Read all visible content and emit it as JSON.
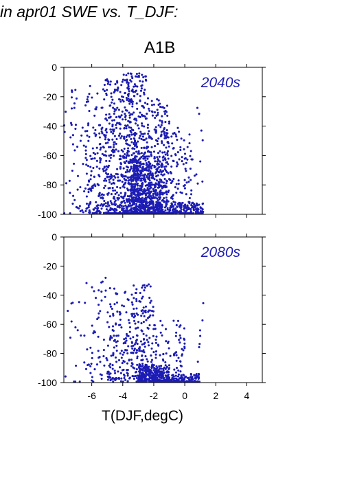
{
  "figure": {
    "title": "in apr01 SWE vs. T_DJF:",
    "scenario": "A1B",
    "xlabel": "T(DJF,degC)"
  },
  "colors": {
    "points": "#1c1cb4",
    "panel_label": "#1c1cb4",
    "axes": "#000000"
  },
  "chart_data": [
    {
      "type": "scatter",
      "panel_label": "2040s",
      "xlim": [
        -7.8,
        5.0
      ],
      "ylim": [
        -100,
        0
      ],
      "yticks": [
        0,
        -20,
        -40,
        -60,
        -80,
        -100
      ],
      "xticks": [
        -6,
        -4,
        -2,
        0,
        2,
        4
      ],
      "x_ticklabels_shown": false,
      "grid": false,
      "density": [
        {
          "x": [
            -7.8,
            -6.5
          ],
          "y": [
            -100,
            -10
          ],
          "n": 45
        },
        {
          "x": [
            -6.5,
            -5.5
          ],
          "y": [
            -100,
            -8
          ],
          "n": 110
        },
        {
          "x": [
            -5.5,
            -4.0
          ],
          "y": [
            -100,
            -8
          ],
          "n": 320
        },
        {
          "x": [
            -4.0,
            -2.5
          ],
          "y": [
            -100,
            -4
          ],
          "n": 520
        },
        {
          "x": [
            -3.5,
            -1.5
          ],
          "y": [
            -100,
            -60
          ],
          "n": 420
        },
        {
          "x": [
            -2.5,
            -1.0
          ],
          "y": [
            -100,
            -20
          ],
          "n": 300
        },
        {
          "x": [
            -1.5,
            0.5
          ],
          "y": [
            -100,
            -40
          ],
          "n": 140
        },
        {
          "x": [
            -1.0,
            1.2
          ],
          "y": [
            -100,
            -92
          ],
          "n": 120
        },
        {
          "x": [
            0.6,
            1.2
          ],
          "y": [
            -100,
            -20
          ],
          "n": 14
        }
      ]
    },
    {
      "type": "scatter",
      "panel_label": "2080s",
      "xlim": [
        -7.8,
        5.0
      ],
      "ylim": [
        -100,
        0
      ],
      "yticks": [
        0,
        -20,
        -40,
        -60,
        -80,
        -100
      ],
      "xticks": [
        -6,
        -4,
        -2,
        0,
        2,
        4
      ],
      "x_ticklabels": [
        "-6",
        "-4",
        "-2",
        "0",
        "2",
        "4"
      ],
      "grid": false,
      "density": [
        {
          "x": [
            -7.8,
            -6.5
          ],
          "y": [
            -100,
            -40
          ],
          "n": 14
        },
        {
          "x": [
            -6.5,
            -5.0
          ],
          "y": [
            -100,
            -28
          ],
          "n": 55
        },
        {
          "x": [
            -5.0,
            -3.5
          ],
          "y": [
            -100,
            -35
          ],
          "n": 140
        },
        {
          "x": [
            -3.5,
            -2.0
          ],
          "y": [
            -100,
            -32
          ],
          "n": 200
        },
        {
          "x": [
            -3.0,
            -1.0
          ],
          "y": [
            -100,
            -88
          ],
          "n": 260
        },
        {
          "x": [
            -2.0,
            0.0
          ],
          "y": [
            -100,
            -55
          ],
          "n": 110
        },
        {
          "x": [
            -1.0,
            1.0
          ],
          "y": [
            -100,
            -94
          ],
          "n": 110
        },
        {
          "x": [
            0.8,
            1.2
          ],
          "y": [
            -100,
            -40
          ],
          "n": 8
        }
      ]
    }
  ]
}
